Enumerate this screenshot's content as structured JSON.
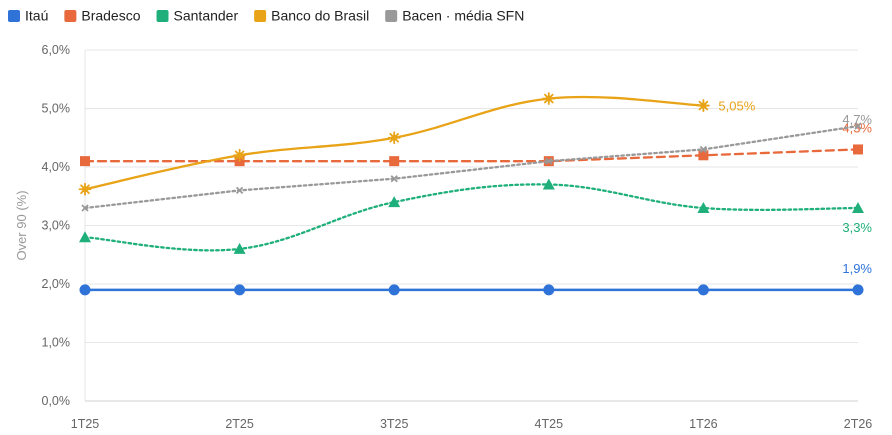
{
  "chart_data": {
    "type": "line",
    "title": "",
    "xlabel": "",
    "ylabel": "Over 90 (%)",
    "categories": [
      "1T25",
      "2T25",
      "3T25",
      "4T25",
      "1T26",
      "2T26"
    ],
    "ylim": [
      0,
      6
    ],
    "yticks": [
      "0,0%",
      "1,0%",
      "2,0%",
      "3,0%",
      "4,0%",
      "5,0%",
      "6,0%"
    ],
    "grid": true,
    "legend_position": "top-left",
    "series": [
      {
        "name": "Itaú",
        "color": "#2F73D9",
        "marker": "circle",
        "dash": "solid",
        "smooth": false,
        "values": [
          1.9,
          1.9,
          1.9,
          1.9,
          1.9,
          1.9
        ],
        "end_label": "1,9%"
      },
      {
        "name": "Bradesco",
        "color": "#E8693C",
        "marker": "square",
        "dash": "dashed",
        "smooth": false,
        "values": [
          4.1,
          4.1,
          4.1,
          4.1,
          4.2,
          4.3
        ],
        "end_label": "4,3%"
      },
      {
        "name": "Santander",
        "color": "#1FAF7A",
        "marker": "triangle",
        "dash": "dotted",
        "smooth": true,
        "values": [
          2.8,
          2.6,
          3.4,
          3.7,
          3.3,
          3.3
        ],
        "end_label": "3,3%"
      },
      {
        "name": "Banco do Brasil",
        "color": "#E8A317",
        "marker": "star",
        "dash": "solid",
        "smooth": true,
        "values": [
          3.62,
          4.2,
          4.5,
          5.17,
          5.05,
          null
        ],
        "end_label": "5,05%"
      },
      {
        "name": "Bacen · média SFN",
        "color": "#999999",
        "marker": "x",
        "dash": "dotted",
        "smooth": false,
        "values": [
          3.3,
          3.6,
          3.8,
          4.1,
          4.3,
          4.7
        ],
        "end_label": "4,7%"
      }
    ]
  }
}
